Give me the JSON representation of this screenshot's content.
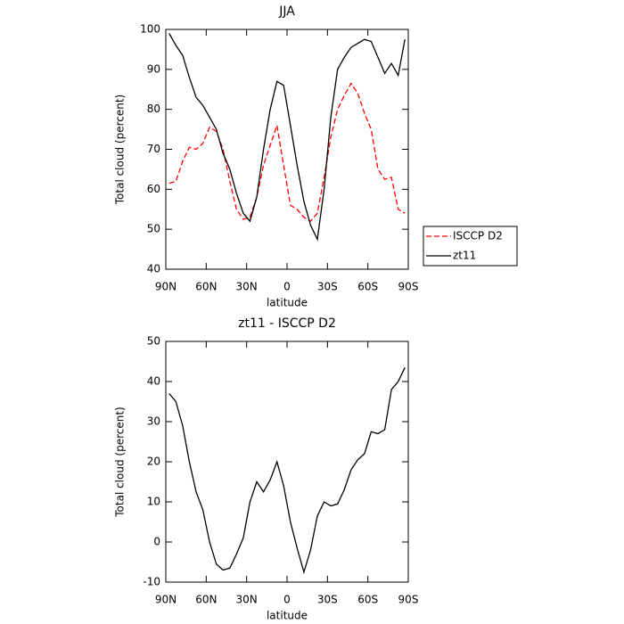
{
  "chart_data": [
    {
      "type": "line",
      "title": "JJA",
      "xlabel": "latitude",
      "ylabel": "Total cloud (percent)",
      "x": [
        87.5,
        82.5,
        77.5,
        72.5,
        67.5,
        62.5,
        57.5,
        52.5,
        47.5,
        42.5,
        37.5,
        32.5,
        27.5,
        22.5,
        17.5,
        12.5,
        7.5,
        2.5,
        -2.5,
        -7.5,
        -12.5,
        -17.5,
        -22.5,
        -27.5,
        -32.5,
        -37.5,
        -42.5,
        -47.5,
        -52.5,
        -57.5,
        -62.5,
        -67.5,
        -72.5,
        -77.5,
        -82.5,
        -87.5
      ],
      "series": [
        {
          "name": "ISCCP D2",
          "color": "#ff0000",
          "dash": true,
          "values": [
            61.5,
            62,
            67,
            70.5,
            70,
            71.5,
            75.5,
            74.5,
            70,
            62,
            55,
            52.5,
            53,
            58,
            66,
            71,
            76,
            66,
            56,
            55,
            53,
            52,
            54,
            63,
            73,
            80,
            83.5,
            86.5,
            84,
            79,
            75,
            65,
            62.5,
            63,
            55,
            54
          ]
        },
        {
          "name": "zt11",
          "color": "#000000",
          "dash": false,
          "values": [
            99,
            96,
            93.5,
            88,
            83,
            81,
            78,
            75,
            69,
            65,
            59,
            54,
            52,
            58,
            70,
            80,
            87,
            86,
            76,
            66,
            57,
            51,
            47.5,
            60,
            78,
            90,
            93,
            95.5,
            96.5,
            97.5,
            97,
            93,
            89,
            91.5,
            88.5,
            97.5
          ]
        }
      ],
      "xlim": [
        90,
        -90
      ],
      "xticks": [
        {
          "value": 90,
          "label": "90N"
        },
        {
          "value": 60,
          "label": "60N"
        },
        {
          "value": 30,
          "label": "30N"
        },
        0,
        {
          "value": -30,
          "label": "30S"
        },
        {
          "value": -60,
          "label": "60S"
        },
        {
          "value": -90,
          "label": "90S"
        }
      ],
      "ylim": [
        40,
        100
      ],
      "yticks": [
        40,
        50,
        60,
        70,
        80,
        90,
        100
      ],
      "legend": "right"
    },
    {
      "type": "line",
      "title": "zt11 - ISCCP D2",
      "xlabel": "latitude",
      "ylabel": "Total cloud (percent)",
      "x": [
        87.5,
        82.5,
        77.5,
        72.5,
        67.5,
        62.5,
        57.5,
        52.5,
        47.5,
        42.5,
        37.5,
        32.5,
        27.5,
        22.5,
        17.5,
        12.5,
        7.5,
        2.5,
        -2.5,
        -7.5,
        -12.5,
        -17.5,
        -22.5,
        -27.5,
        -32.5,
        -37.5,
        -42.5,
        -47.5,
        -52.5,
        -57.5,
        -62.5,
        -67.5,
        -72.5,
        -77.5,
        -82.5,
        -87.5
      ],
      "series": [
        {
          "color": "#000000",
          "dash": false,
          "values": [
            37,
            35,
            29,
            20,
            12.5,
            8,
            0,
            -5.5,
            -7,
            -6.5,
            -3,
            1,
            10,
            15,
            12.5,
            15.5,
            20,
            14,
            5,
            -1.5,
            -7.5,
            -2,
            6.5,
            10,
            9,
            9.5,
            13,
            18,
            20.5,
            22,
            27.5,
            27,
            28,
            38,
            40,
            43.5
          ]
        }
      ],
      "xlim": [
        90,
        -90
      ],
      "xticks": [
        {
          "value": 90,
          "label": "90N"
        },
        {
          "value": 60,
          "label": "60N"
        },
        {
          "value": 30,
          "label": "30N"
        },
        0,
        {
          "value": -30,
          "label": "30S"
        },
        {
          "value": -60,
          "label": "60S"
        },
        {
          "value": -90,
          "label": "90S"
        }
      ],
      "ylim": [
        -10,
        50
      ],
      "yticks": [
        -10,
        0,
        10,
        20,
        30,
        40,
        50
      ]
    }
  ]
}
